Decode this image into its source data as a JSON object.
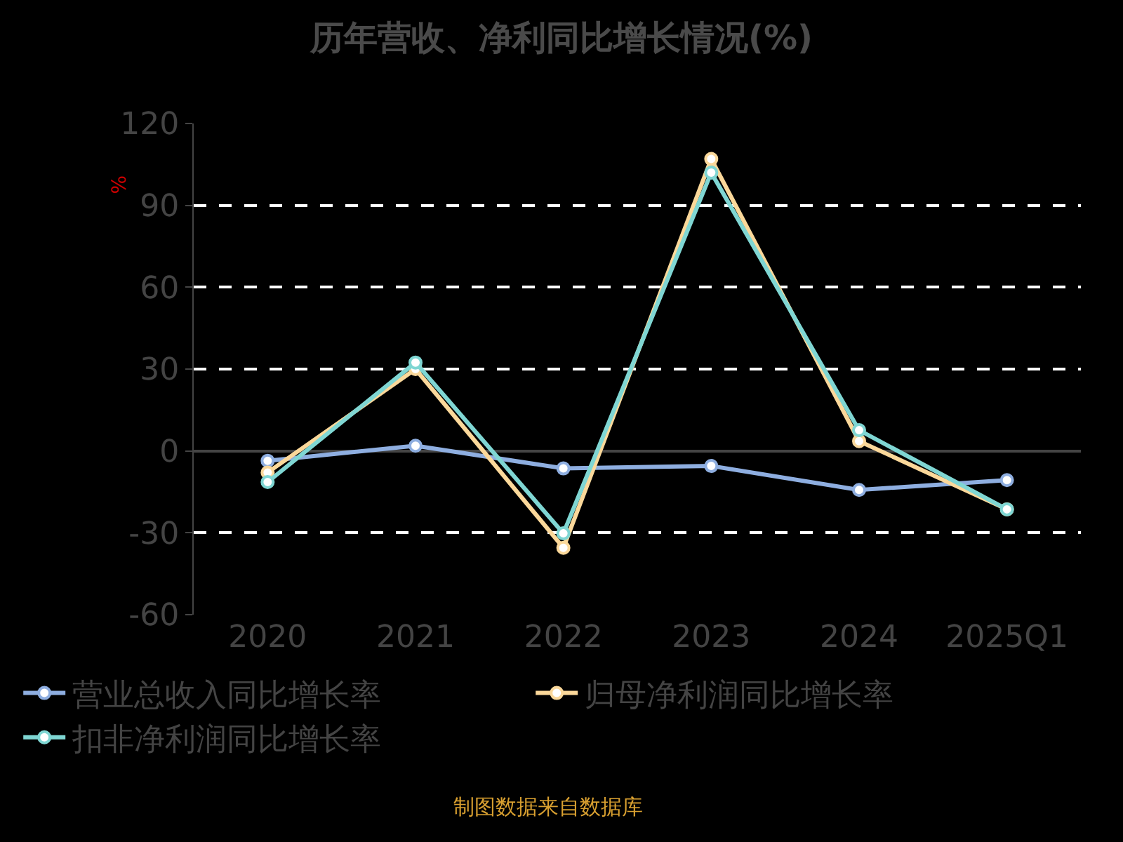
{
  "chart_data": {
    "type": "line",
    "title": "历年营收、净利同比增长情况(%)",
    "ylabel": "%",
    "categories": [
      "2020",
      "2021",
      "2022",
      "2023",
      "2024",
      "2025Q1"
    ],
    "series": [
      {
        "name": "营业总收入同比增长率",
        "color": "#8eaee0",
        "values": [
          -3.6,
          1.9,
          -6.4,
          -5.5,
          -14.3,
          -10.7
        ]
      },
      {
        "name": "归母净利润同比增长率",
        "color": "#fbd89a",
        "values": [
          -7.9,
          30,
          -35.5,
          107,
          3.6,
          -21.4
        ]
      },
      {
        "name": "扣非净利润同比增长率",
        "color": "#7fd6d3",
        "values": [
          -11.4,
          32.4,
          -30.2,
          102,
          7.6,
          -21.4
        ]
      }
    ],
    "ylim": [
      -60,
      120
    ],
    "yticks": [
      -60,
      -30,
      0,
      30,
      60,
      90,
      120
    ],
    "grid": "y",
    "legend": "bottom",
    "marker": "circle",
    "line_style": "solid",
    "annotations": [
      "制图数据来自数据库"
    ]
  }
}
